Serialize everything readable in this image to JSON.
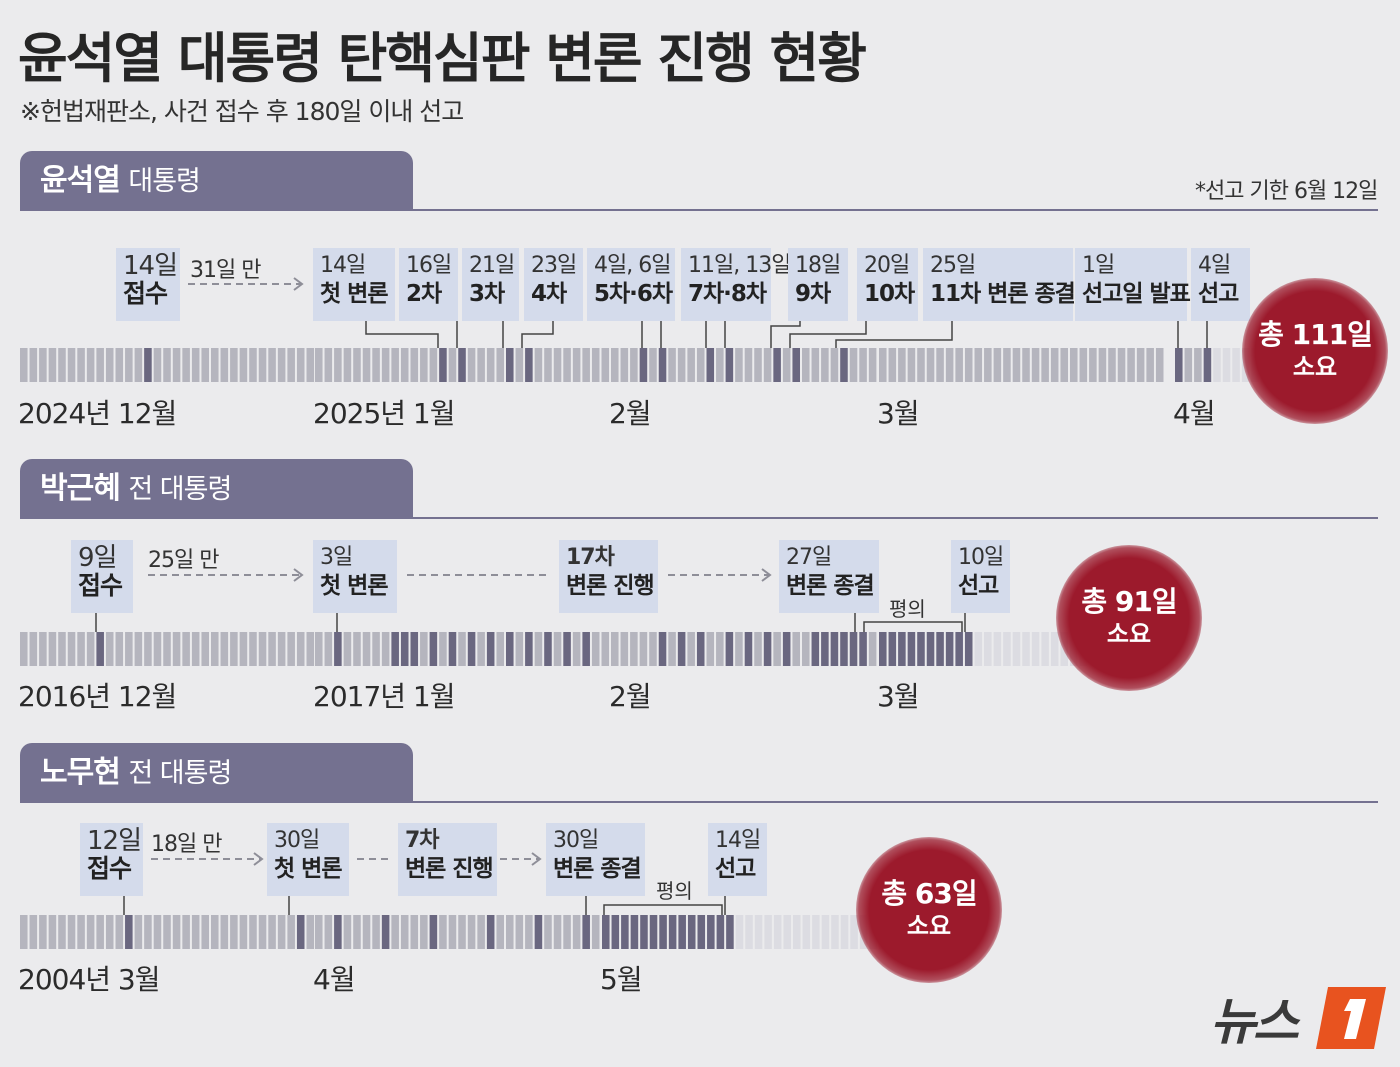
{
  "title": "윤석열 대통령 탄핵심판 변론 진행 현황",
  "subtitle": "※헌법재판소, 사건 접수 후 180일 이내 선고",
  "sections": [
    {
      "name": "윤석열",
      "role": "대통령",
      "note": "*선고 기한 6월 12일",
      "duration": "31일 만",
      "total": "총 111일",
      "total_suffix": "소요",
      "axis": [
        "2024년 12월",
        "2025년 1월",
        "2월",
        "3월",
        "4월"
      ],
      "labels": [
        {
          "top": "14일",
          "bottom": "접수"
        },
        {
          "top": "14일",
          "bottom": "첫 변론"
        },
        {
          "top": "16일",
          "bottom": "2차"
        },
        {
          "top": "21일",
          "bottom": "3차"
        },
        {
          "top": "23일",
          "bottom": "4차"
        },
        {
          "top": "4일, 6일",
          "bottom": "5차·6차"
        },
        {
          "top": "11일, 13일",
          "bottom": "7차·8차"
        },
        {
          "top": "18일",
          "bottom": "9차"
        },
        {
          "top": "20일",
          "bottom": "10차"
        },
        {
          "top": "25일",
          "bottom": "11차 변론 종결"
        },
        {
          "top": "1일",
          "bottom": "선고일 발표"
        },
        {
          "top": "4일",
          "bottom": "선고"
        }
      ]
    },
    {
      "name": "박근혜",
      "role": "전 대통령",
      "duration": "25일 만",
      "deliberation": "평의",
      "total": "총 91일",
      "total_suffix": "소요",
      "axis": [
        "2016년 12월",
        "2017년 1월",
        "2월",
        "3월"
      ],
      "labels": [
        {
          "top": "9일",
          "bottom": "접수"
        },
        {
          "top": "3일",
          "bottom": "첫 변론"
        },
        {
          "top": "17차",
          "bottom": "변론 진행"
        },
        {
          "top": "27일",
          "bottom": "변론 종결"
        },
        {
          "top": "10일",
          "bottom": "선고"
        }
      ]
    },
    {
      "name": "노무현",
      "role": "전 대통령",
      "duration": "18일 만",
      "deliberation": "평의",
      "total": "총 63일",
      "total_suffix": "소요",
      "axis": [
        "2004년 3월",
        "4월",
        "5월"
      ],
      "labels": [
        {
          "top": "12일",
          "bottom": "접수"
        },
        {
          "top": "30일",
          "bottom": "첫 변론"
        },
        {
          "top": "7차",
          "bottom": "변론 진행"
        },
        {
          "top": "30일",
          "bottom": "변론 종결"
        },
        {
          "top": "14일",
          "bottom": "선고"
        }
      ]
    }
  ],
  "logo_text": "뉴스1",
  "colors": {
    "background": "#ebebed",
    "tab": "#747190",
    "label_box": "#d4dbeb",
    "day_cell": "#b5b5be",
    "event_cell": "#6a6780",
    "total_circle": "#9c1a2c",
    "logo_orange": "#e8531f"
  }
}
